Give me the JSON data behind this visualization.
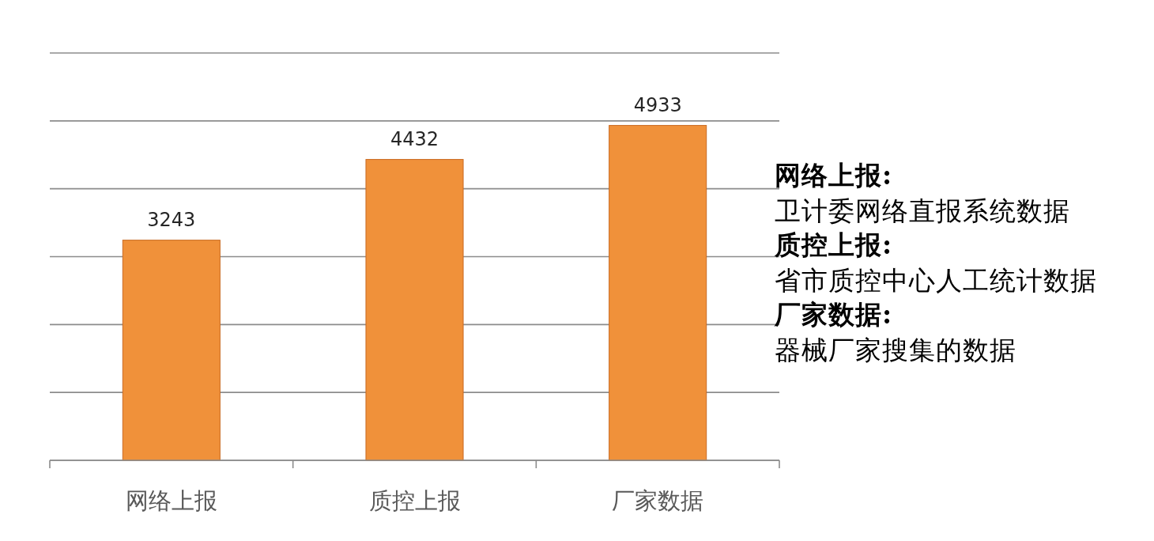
{
  "chart_data": {
    "type": "bar",
    "categories": [
      "网络上报",
      "质控上报",
      "厂家数据"
    ],
    "values": [
      3243,
      4432,
      4933
    ],
    "color": "#f0913a",
    "ylim": [
      0,
      6000
    ],
    "yticks": [
      0,
      1000,
      2000,
      3000,
      4000,
      5000,
      6000
    ],
    "grid": "y",
    "tick_labels": "x",
    "data_labels": true,
    "annotations": [
      "**网络上报:**卫计委网络直报系统数据",
      "**质控上报:**省市质控中心人工统计数据",
      "**厂家数据:**器械厂家搜集的数据"
    ]
  }
}
